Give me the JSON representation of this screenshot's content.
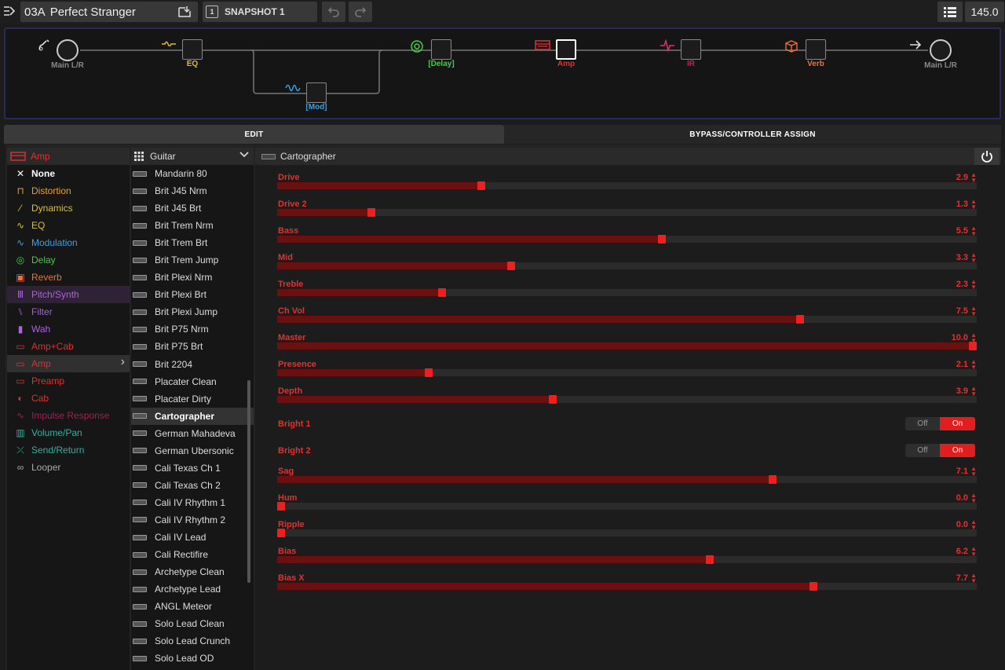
{
  "topbar": {
    "preset": "03A",
    "preset_title": "Perfect Stranger",
    "snapshot_num": "1",
    "snapshot": "SNAPSHOT 1",
    "tempo": "145.0"
  },
  "chain": {
    "input": "Main L/R",
    "eq": "EQ",
    "mod": "[Mod]",
    "delay": "[Delay]",
    "amp": "Amp",
    "ir": "IR",
    "verb": "Verb",
    "output": "Main L/R"
  },
  "tabs": {
    "edit": "EDIT",
    "bypass": "BYPASS/CONTROLLER ASSIGN"
  },
  "categories": {
    "header": "Amp",
    "items": [
      {
        "label": "None",
        "color": "#ffffff"
      },
      {
        "label": "Distortion",
        "color": "#e8a02a"
      },
      {
        "label": "Dynamics",
        "color": "#e0c020"
      },
      {
        "label": "EQ",
        "color": "#e0c020"
      },
      {
        "label": "Modulation",
        "color": "#3aa0e0"
      },
      {
        "label": "Delay",
        "color": "#40d040"
      },
      {
        "label": "Reverb",
        "color": "#f07030"
      },
      {
        "label": "Pitch/Synth",
        "color": "#b060e0"
      },
      {
        "label": "Filter",
        "color": "#a060e0"
      },
      {
        "label": "Wah",
        "color": "#b060e0"
      },
      {
        "label": "Amp+Cab",
        "color": "#e03030"
      },
      {
        "label": "Amp",
        "color": "#e03030"
      },
      {
        "label": "Preamp",
        "color": "#e03030"
      },
      {
        "label": "Cab",
        "color": "#e03030"
      },
      {
        "label": "Impulse Response",
        "color": "#a02050"
      },
      {
        "label": "Volume/Pan",
        "color": "#30b0a0"
      },
      {
        "label": "Send/Return",
        "color": "#30b0a0"
      },
      {
        "label": "Looper",
        "color": "#aaaaaa"
      }
    ]
  },
  "models": {
    "header": "Guitar",
    "items": [
      "Mandarin 80",
      "Brit J45 Nrm",
      "Brit J45 Brt",
      "Brit Trem Nrm",
      "Brit Trem Brt",
      "Brit Trem Jump",
      "Brit Plexi Nrm",
      "Brit Plexi Brt",
      "Brit Plexi Jump",
      "Brit P75 Nrm",
      "Brit P75 Brt",
      "Brit 2204",
      "Placater Clean",
      "Placater Dirty",
      "Cartographer",
      "German Mahadeva",
      "German Ubersonic",
      "Cali Texas Ch 1",
      "Cali Texas Ch 2",
      "Cali IV Rhythm 1",
      "Cali IV Rhythm 2",
      "Cali IV Lead",
      "Cali Rectifire",
      "Archetype Clean",
      "Archetype Lead",
      "ANGL Meteor",
      "Solo Lead Clean",
      "Solo Lead Crunch",
      "Solo Lead OD"
    ],
    "selected": "Cartographer"
  },
  "params": {
    "model": "Cartographer",
    "sliders": [
      {
        "name": "Drive",
        "value": "2.9",
        "pct": 0.29
      },
      {
        "name": "Drive 2",
        "value": "1.3",
        "pct": 0.13
      },
      {
        "name": "Bass",
        "value": "5.5",
        "pct": 0.55
      },
      {
        "name": "Mid",
        "value": "3.3",
        "pct": 0.333
      },
      {
        "name": "Treble",
        "value": "2.3",
        "pct": 0.233
      },
      {
        "name": "Ch Vol",
        "value": "7.5",
        "pct": 0.75
      },
      {
        "name": "Master",
        "value": "10.0",
        "pct": 1.0
      },
      {
        "name": "Presence",
        "value": "2.1",
        "pct": 0.213
      },
      {
        "name": "Depth",
        "value": "3.9",
        "pct": 0.393
      }
    ],
    "toggles": [
      {
        "name": "Bright 1",
        "off": "Off",
        "on": "On"
      },
      {
        "name": "Bright 2",
        "off": "Off",
        "on": "On"
      }
    ],
    "sliders2": [
      {
        "name": "Sag",
        "value": "7.1",
        "pct": 0.71
      },
      {
        "name": "Hum",
        "value": "0.0",
        "pct": 0.0
      },
      {
        "name": "Ripple",
        "value": "0.0",
        "pct": 0.0
      },
      {
        "name": "Bias",
        "value": "6.2",
        "pct": 0.62
      },
      {
        "name": "Bias X",
        "value": "7.7",
        "pct": 0.77
      }
    ]
  }
}
